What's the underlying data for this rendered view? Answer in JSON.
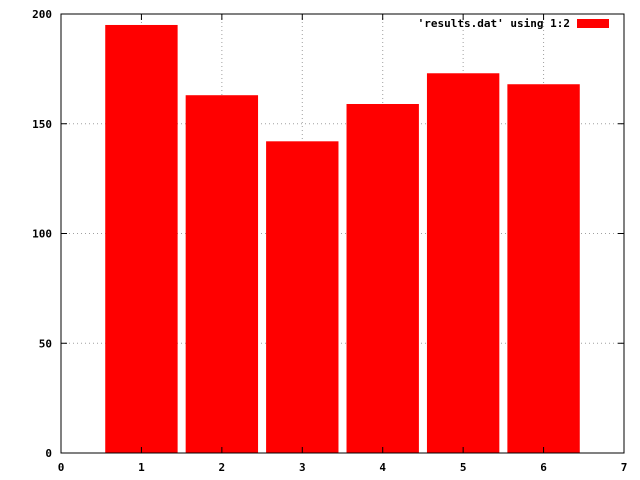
{
  "chart_data": {
    "type": "bar",
    "x": [
      1,
      2,
      3,
      4,
      5,
      6
    ],
    "values": [
      195,
      163,
      142,
      159,
      173,
      168
    ],
    "xlim": [
      0,
      7
    ],
    "ylim": [
      0,
      200
    ],
    "xticks": [
      0,
      1,
      2,
      3,
      4,
      5,
      6,
      7
    ],
    "yticks": [
      0,
      50,
      100,
      150,
      200
    ],
    "bar_width": 0.9,
    "grid": true,
    "legend": {
      "label": "'results.dat' using 1:2",
      "placement": "top-right"
    },
    "colors": {
      "bar": "#ff0000",
      "grid": "#a0a0a0",
      "axis": "#000000"
    },
    "title": "",
    "xlabel": "",
    "ylabel": ""
  }
}
